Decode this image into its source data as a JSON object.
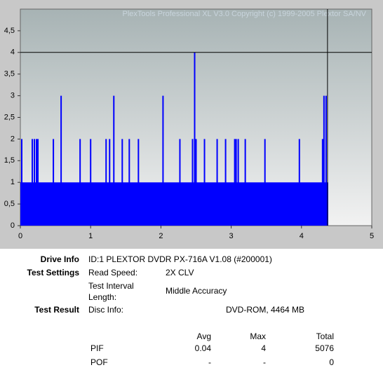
{
  "chart_data": {
    "type": "spikes",
    "watermark": "PlexTools Professional XL V3.0  Copyright (c) 1999-2005 Plextor SA/NV",
    "color": "#0000ff",
    "xlim": [
      0,
      5
    ],
    "xticks": [
      0,
      1,
      2,
      3,
      4,
      5
    ],
    "ylim": [
      0,
      5
    ],
    "yticks": [
      0,
      {
        "value": 0.5,
        "label": "0,5"
      },
      1,
      {
        "value": 1.5,
        "label": "1,5"
      },
      2,
      {
        "value": 2.5,
        "label": "2,5"
      },
      3,
      {
        "value": 3.5,
        "label": "3,5"
      },
      4,
      {
        "value": 4.5,
        "label": "4,5"
      }
    ],
    "baseline": {
      "x": [
        0,
        4.38
      ],
      "values": [
        1,
        1
      ]
    },
    "spikes": {
      "x": [
        0.02,
        0.17,
        0.2,
        0.23,
        0.25,
        0.47,
        0.58,
        0.85,
        1.0,
        1.22,
        1.27,
        1.33,
        1.45,
        1.55,
        1.68,
        2.03,
        2.27,
        2.45,
        2.48,
        2.5,
        2.62,
        2.8,
        2.92,
        3.05,
        3.07,
        3.1,
        3.2,
        3.48,
        3.97,
        4.3,
        4.32,
        4.35
      ],
      "values": [
        2,
        2,
        2,
        2,
        2,
        2,
        3,
        2,
        2,
        2,
        2,
        3,
        2,
        2,
        2,
        3,
        2,
        2,
        4,
        2,
        2,
        2,
        2,
        2,
        2,
        2,
        2,
        2,
        2,
        2,
        3,
        3
      ]
    },
    "cursor": {
      "x": 4.37,
      "y": 4
    }
  },
  "info": {
    "drive_label": "Drive Info",
    "drive_value": "ID:1 PLEXTOR DVDR PX-716A V1.08 (#200001)",
    "settings_label": "Test Settings",
    "read_speed_label": "Read Speed:",
    "read_speed_value": "2X CLV",
    "interval_label_1": "Test Interval",
    "interval_label_2": "Length:",
    "interval_value": "Middle Accuracy",
    "result_label": "Test Result",
    "disc_label": "Disc Info:",
    "disc_value": "DVD-ROM, 4464 MB",
    "table": {
      "header": [
        "Avg",
        "Max",
        "Total"
      ],
      "rows": [
        [
          "PIF",
          0.04,
          4,
          5076
        ],
        [
          "POF",
          "-",
          "-",
          0
        ]
      ]
    }
  }
}
